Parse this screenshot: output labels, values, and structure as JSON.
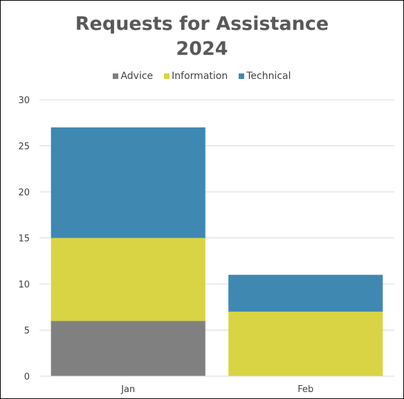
{
  "chart_data": {
    "type": "bar",
    "stacked": true,
    "title": "Requests for Assistance",
    "subtitle": "2024",
    "categories": [
      "Jan",
      "Feb"
    ],
    "series": [
      {
        "name": "Advice",
        "values": [
          6,
          0
        ],
        "color": "#808080"
      },
      {
        "name": "Information",
        "values": [
          9,
          7
        ],
        "color": "#D9D443"
      },
      {
        "name": "Technical",
        "values": [
          12,
          4
        ],
        "color": "#3F88B2"
      }
    ],
    "ylim": [
      0,
      30
    ],
    "yticks": [
      0,
      5,
      10,
      15,
      20,
      25,
      30
    ],
    "grid": true,
    "legend_position": "top"
  }
}
